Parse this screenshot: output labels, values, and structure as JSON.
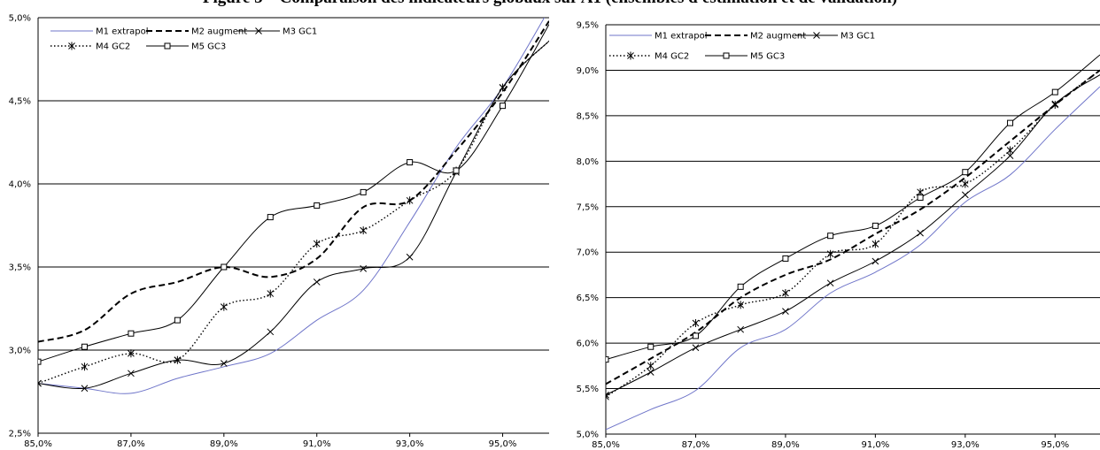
{
  "figure": {
    "title": "Figure 5 – Comparaison des indicateurs globaux sur A1 (ensembles d'estimation et de validation)"
  },
  "colors": {
    "m1": "#6f75c9",
    "other": "#000000",
    "grid": "#000000"
  },
  "chart_data": [
    {
      "type": "line",
      "x_ticks": [
        "85,0%",
        "87,0%",
        "89,0%",
        "91,0%",
        "93,0%",
        "95,0%"
      ],
      "x_tick_values": [
        85,
        87,
        89,
        91,
        93,
        95
      ],
      "xlim": [
        85,
        96
      ],
      "ylim": [
        2.5,
        5.0
      ],
      "y_ticks": [
        "2,5%",
        "3,0%",
        "3,5%",
        "4,0%",
        "4,5%",
        "5,0%"
      ],
      "y_tick_values": [
        2.5,
        3.0,
        3.5,
        4.0,
        4.5,
        5.0
      ],
      "grid": "horizontal",
      "legend_position": "top-left",
      "series": [
        {
          "name": "M1 extrapol",
          "style": "solid-blue",
          "marker": "none",
          "x": [
            85,
            86,
            87,
            88,
            89,
            90,
            91,
            92,
            93,
            94,
            95,
            96
          ],
          "y": [
            2.8,
            2.77,
            2.74,
            2.83,
            2.9,
            2.98,
            3.18,
            3.36,
            3.77,
            4.22,
            4.58,
            5.05
          ]
        },
        {
          "name": "M2 augment",
          "style": "dashed",
          "marker": "none",
          "x": [
            85,
            86,
            87,
            88,
            89,
            90,
            91,
            92,
            93,
            94,
            95,
            96
          ],
          "y": [
            3.05,
            3.12,
            3.34,
            3.41,
            3.5,
            3.44,
            3.55,
            3.86,
            3.9,
            4.2,
            4.55,
            4.98
          ]
        },
        {
          "name": "M3 GC1",
          "style": "solid",
          "marker": "x",
          "x": [
            85,
            86,
            87,
            88,
            89,
            90,
            91,
            92,
            93,
            94,
            95,
            96
          ],
          "y": [
            2.8,
            2.77,
            2.86,
            2.94,
            2.92,
            3.11,
            3.41,
            3.49,
            3.56,
            4.07,
            4.58,
            4.86
          ]
        },
        {
          "name": "M4 GC2",
          "style": "dotted",
          "marker": "star",
          "x": [
            85,
            86,
            87,
            88,
            89,
            90,
            91,
            92,
            93,
            94,
            95,
            96
          ],
          "y": [
            2.8,
            2.9,
            2.98,
            2.94,
            3.26,
            3.34,
            3.64,
            3.72,
            3.9,
            4.08,
            4.58,
            4.86
          ]
        },
        {
          "name": "M5 GC3",
          "style": "solid",
          "marker": "square",
          "x": [
            85,
            86,
            87,
            88,
            89,
            90,
            91,
            92,
            93,
            94,
            95,
            96
          ],
          "y": [
            2.93,
            3.02,
            3.1,
            3.18,
            3.5,
            3.8,
            3.87,
            3.95,
            4.13,
            4.08,
            4.47,
            4.96
          ]
        }
      ]
    },
    {
      "type": "line",
      "x_ticks": [
        "85,0%",
        "87,0%",
        "89,0%",
        "91,0%",
        "93,0%",
        "95,0%"
      ],
      "x_tick_values": [
        85,
        87,
        89,
        91,
        93,
        95
      ],
      "xlim": [
        85,
        96
      ],
      "ylim": [
        5.0,
        9.5
      ],
      "y_ticks": [
        "5,0%",
        "5,5%",
        "6,0%",
        "6,5%",
        "7,0%",
        "7,5%",
        "8,0%",
        "8,5%",
        "9,0%",
        "9,5%"
      ],
      "y_tick_values": [
        5.0,
        5.5,
        6.0,
        6.5,
        7.0,
        7.5,
        8.0,
        8.5,
        9.0,
        9.5
      ],
      "grid": "horizontal",
      "legend_position": "top-left",
      "series": [
        {
          "name": "M1 extrapol",
          "style": "solid-blue",
          "marker": "none",
          "x": [
            85,
            86,
            87,
            88,
            89,
            90,
            91,
            92,
            93,
            94,
            95,
            96
          ],
          "y": [
            5.05,
            5.27,
            5.48,
            5.95,
            6.15,
            6.55,
            6.78,
            7.08,
            7.55,
            7.85,
            8.35,
            8.82
          ]
        },
        {
          "name": "M2 augment",
          "style": "dashed",
          "marker": "none",
          "x": [
            85,
            86,
            87,
            88,
            89,
            90,
            91,
            92,
            93,
            94,
            95,
            96
          ],
          "y": [
            5.55,
            5.83,
            6.12,
            6.5,
            6.75,
            6.92,
            7.2,
            7.47,
            7.82,
            8.22,
            8.62,
            9.0
          ]
        },
        {
          "name": "M3 GC1",
          "style": "solid",
          "marker": "x",
          "x": [
            85,
            86,
            87,
            88,
            89,
            90,
            91,
            92,
            93,
            94,
            95,
            96
          ],
          "y": [
            5.43,
            5.68,
            5.95,
            6.15,
            6.35,
            6.66,
            6.9,
            7.21,
            7.63,
            8.06,
            8.63,
            8.95
          ]
        },
        {
          "name": "M4 GC2",
          "style": "dotted",
          "marker": "star",
          "x": [
            85,
            86,
            87,
            88,
            89,
            90,
            91,
            92,
            93,
            94,
            95,
            96
          ],
          "y": [
            5.41,
            5.75,
            6.22,
            6.42,
            6.55,
            6.98,
            7.09,
            7.66,
            7.75,
            8.12,
            8.62,
            9.0
          ]
        },
        {
          "name": "M5 GC3",
          "style": "solid",
          "marker": "square",
          "x": [
            85,
            86,
            87,
            88,
            89,
            90,
            91,
            92,
            93,
            94,
            95,
            96
          ],
          "y": [
            5.82,
            5.96,
            6.08,
            6.62,
            6.93,
            7.18,
            7.29,
            7.6,
            7.88,
            8.42,
            8.76,
            9.17
          ]
        }
      ]
    }
  ]
}
